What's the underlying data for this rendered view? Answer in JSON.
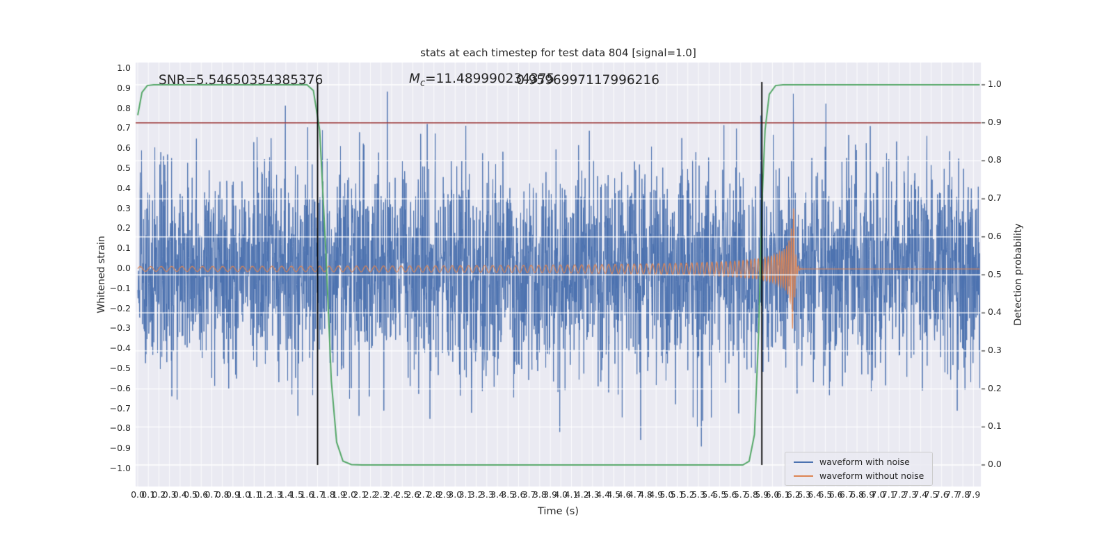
{
  "figure": {
    "title": "stats at each timestep for test data 804 [signal=1.0]",
    "xlabel": "Time (s)",
    "ylabel_left": "Whitened strain",
    "ylabel_right": "Detection probability"
  },
  "annotations": {
    "snr": "SNR=5.54650354385376",
    "mc_m": "M",
    "mc_sub": "c",
    "mc_rest": "=11.489990234375",
    "overlap_value": "0.9596997117996216"
  },
  "legend": {
    "items": [
      {
        "label": "waveform with noise",
        "color": "#4c72b0"
      },
      {
        "label": "waveform without noise",
        "color": "#dd8452"
      }
    ]
  },
  "chart_data": {
    "type": "line",
    "title": "stats at each timestep for test data 804 [signal=1.0]",
    "xlabel": "Time (s)",
    "ylabel_left": "Whitened strain",
    "ylabel_right": "Detection probability",
    "test_index": 804,
    "signal": 1.0,
    "annotations": {
      "SNR": 5.54650354385376,
      "chirp_mass_Mc": 11.489990234375,
      "overlapping_value": 0.9596997117996215
    },
    "x_range_seconds": [
      0.0,
      8.0
    ],
    "y_left_range": [
      -1.05,
      1.05
    ],
    "y_right_range": [
      -0.05,
      1.05
    ],
    "grid": true,
    "legend_position": "lower right",
    "x_tick_labels": [
      "0.0",
      "0.1",
      "0.2",
      "0.3",
      "0.4",
      "0.5",
      "0.6",
      "0.7",
      "0.8",
      "0.9",
      "1.0",
      "1.1",
      "1.2",
      "1.3",
      "1.4",
      "1.5",
      "1.6",
      "1.7",
      "1.8",
      "1.9",
      "2.0",
      "2.1",
      "2.2",
      "2.3",
      "2.4",
      "2.5",
      "2.6",
      "2.7",
      "2.8",
      "2.9",
      "3.0",
      "3.1",
      "3.2",
      "3.3",
      "3.4",
      "3.5",
      "3.6",
      "3.7",
      "3.8",
      "3.9",
      "4.0",
      "4.1",
      "4.2",
      "4.3",
      "4.4",
      "4.5",
      "4.6",
      "4.7",
      "4.8",
      "4.9",
      "5.0",
      "5.1",
      "5.2",
      "5.3",
      "5.4",
      "5.5",
      "5.6",
      "5.7",
      "5.8",
      "5.9",
      "6.0",
      "6.1",
      "6.2",
      "6.3",
      "6.4",
      "6.5",
      "6.6",
      "6.7",
      "6.8",
      "6.9",
      "7.0",
      "7.1",
      "7.2",
      "7.3",
      "7.4",
      "7.5",
      "7.6",
      "7.7",
      "7.8",
      "7.9"
    ],
    "y_left_tick_labels": [
      "1.0",
      "0.9",
      "0.8",
      "0.7",
      "0.6",
      "0.5",
      "0.4",
      "0.3",
      "0.2",
      "0.1",
      "0.0",
      "−0.1",
      "−0.2",
      "−0.3",
      "−0.4",
      "−0.5",
      "−0.6",
      "−0.7",
      "−0.8",
      "−0.9",
      "−1.0"
    ],
    "y_right_tick_labels": [
      "1.0",
      "0.9",
      "0.8",
      "0.7",
      "0.6",
      "0.5",
      "0.4",
      "0.3",
      "0.2",
      "0.1",
      "0.0"
    ],
    "threshold": {
      "axis": "right",
      "value": 0.9,
      "color": "#993333"
    },
    "event_vlines_s": [
      1.7,
      5.9
    ],
    "series": [
      {
        "name": "waveform with noise",
        "color": "#4c72b0",
        "axis": "left",
        "kind": "gaussian-noise",
        "sigma": 0.27,
        "clip": 0.92,
        "seed": 804,
        "samples": 3360
      },
      {
        "name": "waveform without noise",
        "color": "#dd8452",
        "axis": "left",
        "kind": "gw-chirp",
        "t_merger_s": 6.2,
        "f_start_hz": 10,
        "f_cap_hz": 45,
        "freq_power": -0.375,
        "amp_start": 0.012,
        "amp_peak": 0.31,
        "amp_power": -0.5,
        "ringdown_tau_s": 0.015
      },
      {
        "name": "detection probability",
        "color": "#55a868",
        "axis": "right",
        "kind": "polyline",
        "points": [
          [
            0.0,
            0.92
          ],
          [
            0.04,
            0.98
          ],
          [
            0.09,
            0.998
          ],
          [
            0.15,
            1.0
          ],
          [
            1.6,
            1.0
          ],
          [
            1.66,
            0.985
          ],
          [
            1.72,
            0.88
          ],
          [
            1.78,
            0.55
          ],
          [
            1.83,
            0.22
          ],
          [
            1.88,
            0.06
          ],
          [
            1.94,
            0.01
          ],
          [
            2.02,
            0.001
          ],
          [
            2.12,
            0.0
          ],
          [
            5.72,
            0.0
          ],
          [
            5.78,
            0.01
          ],
          [
            5.83,
            0.08
          ],
          [
            5.87,
            0.35
          ],
          [
            5.9,
            0.68
          ],
          [
            5.93,
            0.88
          ],
          [
            5.97,
            0.975
          ],
          [
            6.03,
            0.998
          ],
          [
            6.1,
            1.0
          ],
          [
            7.96,
            1.0
          ]
        ]
      }
    ]
  }
}
